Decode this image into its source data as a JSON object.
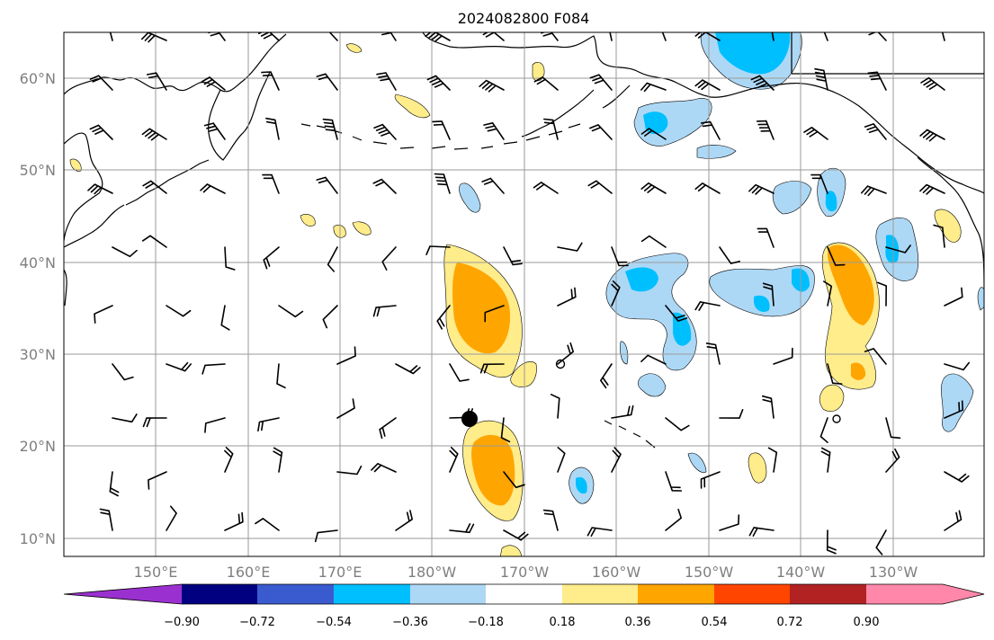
{
  "title": "2024082800 F084",
  "map": {
    "lon_labels": [
      "150°E",
      "160°E",
      "170°E",
      "180°W",
      "170°W",
      "160°W",
      "150°W",
      "140°W",
      "130°W"
    ],
    "lat_labels": [
      "60°N",
      "50°N",
      "40°N",
      "30°N",
      "20°N",
      "10°N"
    ]
  },
  "colorbar": {
    "labels": [
      "−0.90",
      "−0.72",
      "−0.54",
      "−0.36",
      "−0.18",
      "0.18",
      "0.36",
      "0.54",
      "0.72",
      "0.90"
    ],
    "colors": [
      "#9b30d0",
      "#000080",
      "#3a5bcf",
      "#00bfff",
      "#add8f5",
      "#ffffff",
      "#ffec8b",
      "#ffa500",
      "#ff4500",
      "#b22222",
      "#ff88aa"
    ]
  },
  "markers": [
    {
      "name": "large-dot",
      "fill": "#000000"
    },
    {
      "name": "small-circle",
      "fill": "none"
    }
  ]
}
